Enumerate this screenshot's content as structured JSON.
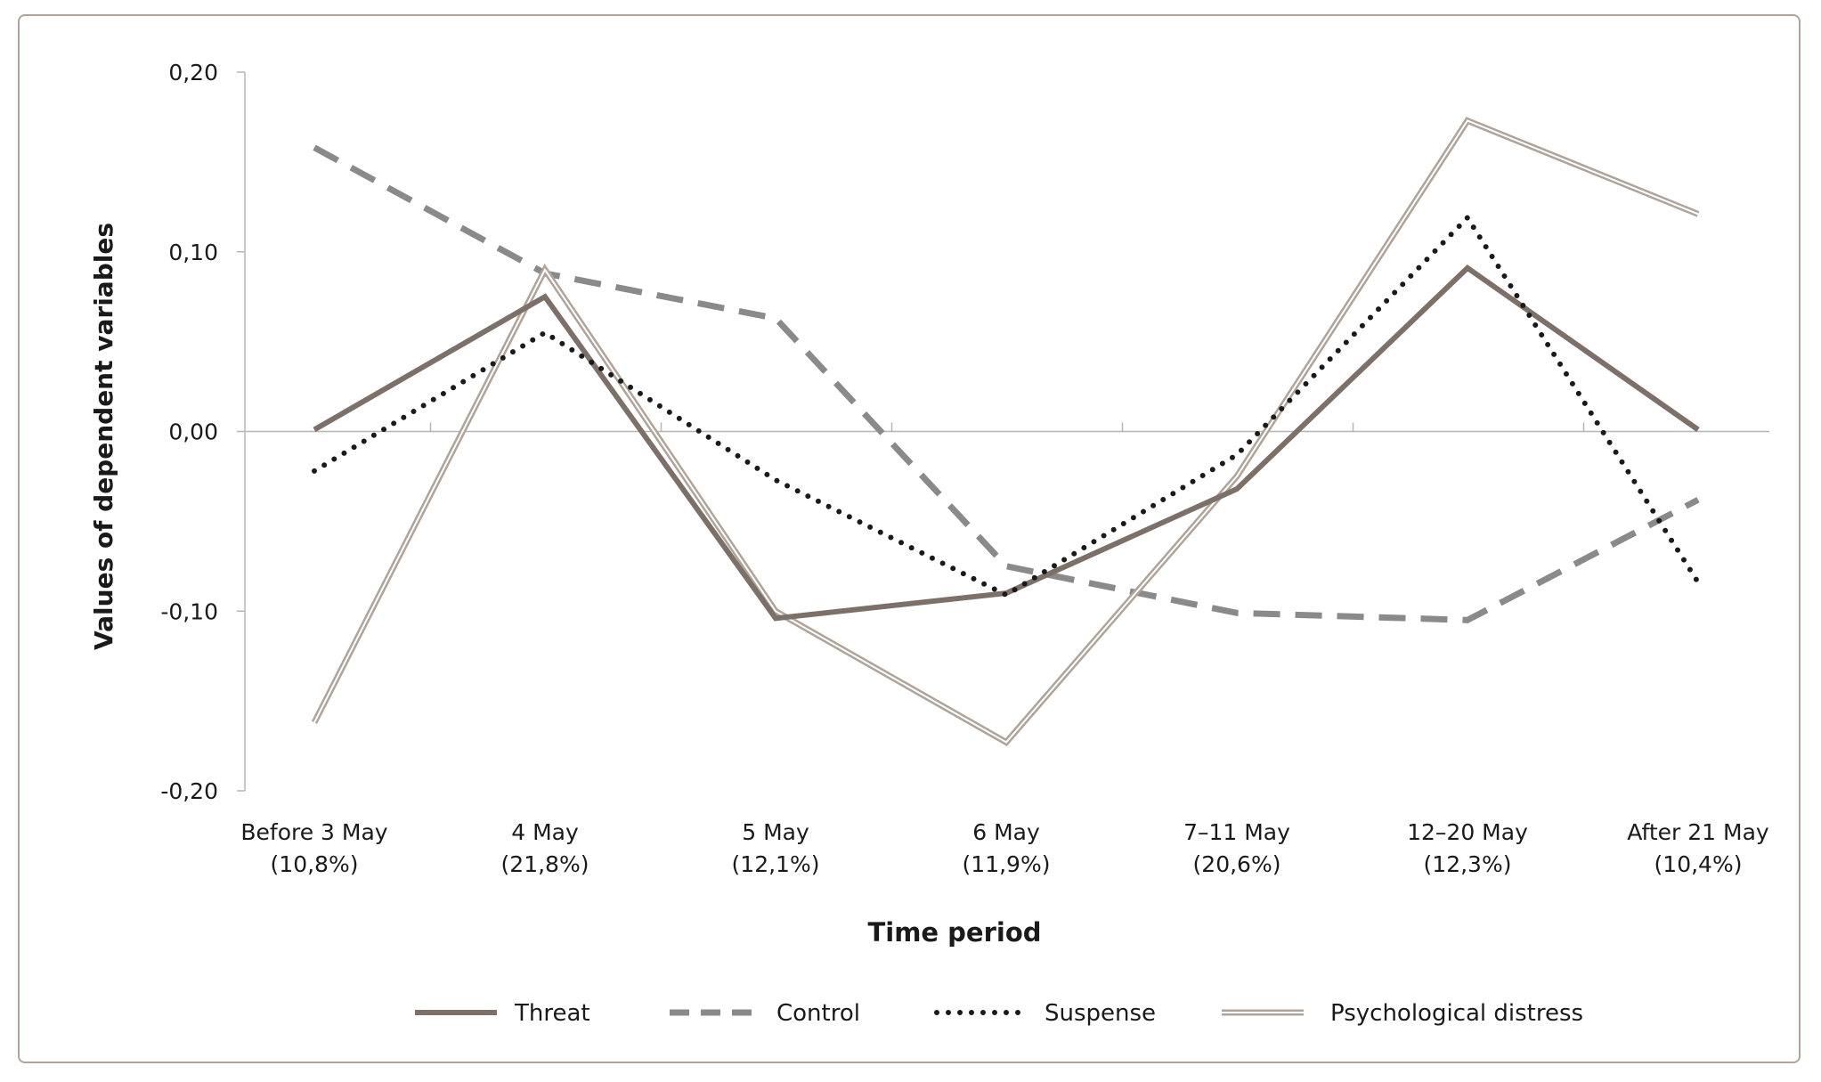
{
  "chart_data": {
    "type": "line",
    "title": "",
    "xlabel": "Time period",
    "ylabel": "Values of dependent variables",
    "ylim": [
      -0.2,
      0.2
    ],
    "yticks": [
      0.2,
      0.1,
      0.0,
      -0.1,
      -0.2
    ],
    "ytick_labels": [
      "0,20",
      "0,10",
      "0,00",
      "-0,10",
      "-0,20"
    ],
    "categories": [
      {
        "line1": "Before 3 May",
        "line2": "(10,8%)"
      },
      {
        "line1": "4 May",
        "line2": "(21,8%)"
      },
      {
        "line1": "5 May",
        "line2": "(12,1%)"
      },
      {
        "line1": "6 May",
        "line2": "(11,9%)"
      },
      {
        "line1": "7–11 May",
        "line2": "(20,6%)"
      },
      {
        "line1": "12–20 May",
        "line2": "(12,3%)"
      },
      {
        "line1": "After 21 May",
        "line2": "(10,4%)"
      }
    ],
    "series": [
      {
        "name": "Threat",
        "style": "solid",
        "color": "#7d7068",
        "values": [
          0.001,
          0.075,
          -0.104,
          -0.09,
          -0.032,
          0.091,
          0.001
        ]
      },
      {
        "name": "Control",
        "style": "dashed",
        "color": "#8a8a8a",
        "values": [
          0.158,
          0.088,
          0.063,
          -0.075,
          -0.101,
          -0.105,
          -0.038
        ]
      },
      {
        "name": "Suspense",
        "style": "dotted",
        "color": "#1a1a1a",
        "values": [
          -0.022,
          0.055,
          -0.027,
          -0.091,
          -0.013,
          0.119,
          -0.084
        ]
      },
      {
        "name": "Psychological distress",
        "style": "double",
        "color": "#b0a49a",
        "values": [
          -0.162,
          0.09,
          -0.1,
          -0.173,
          -0.025,
          0.173,
          0.121
        ]
      }
    ],
    "legend_position": "bottom"
  }
}
